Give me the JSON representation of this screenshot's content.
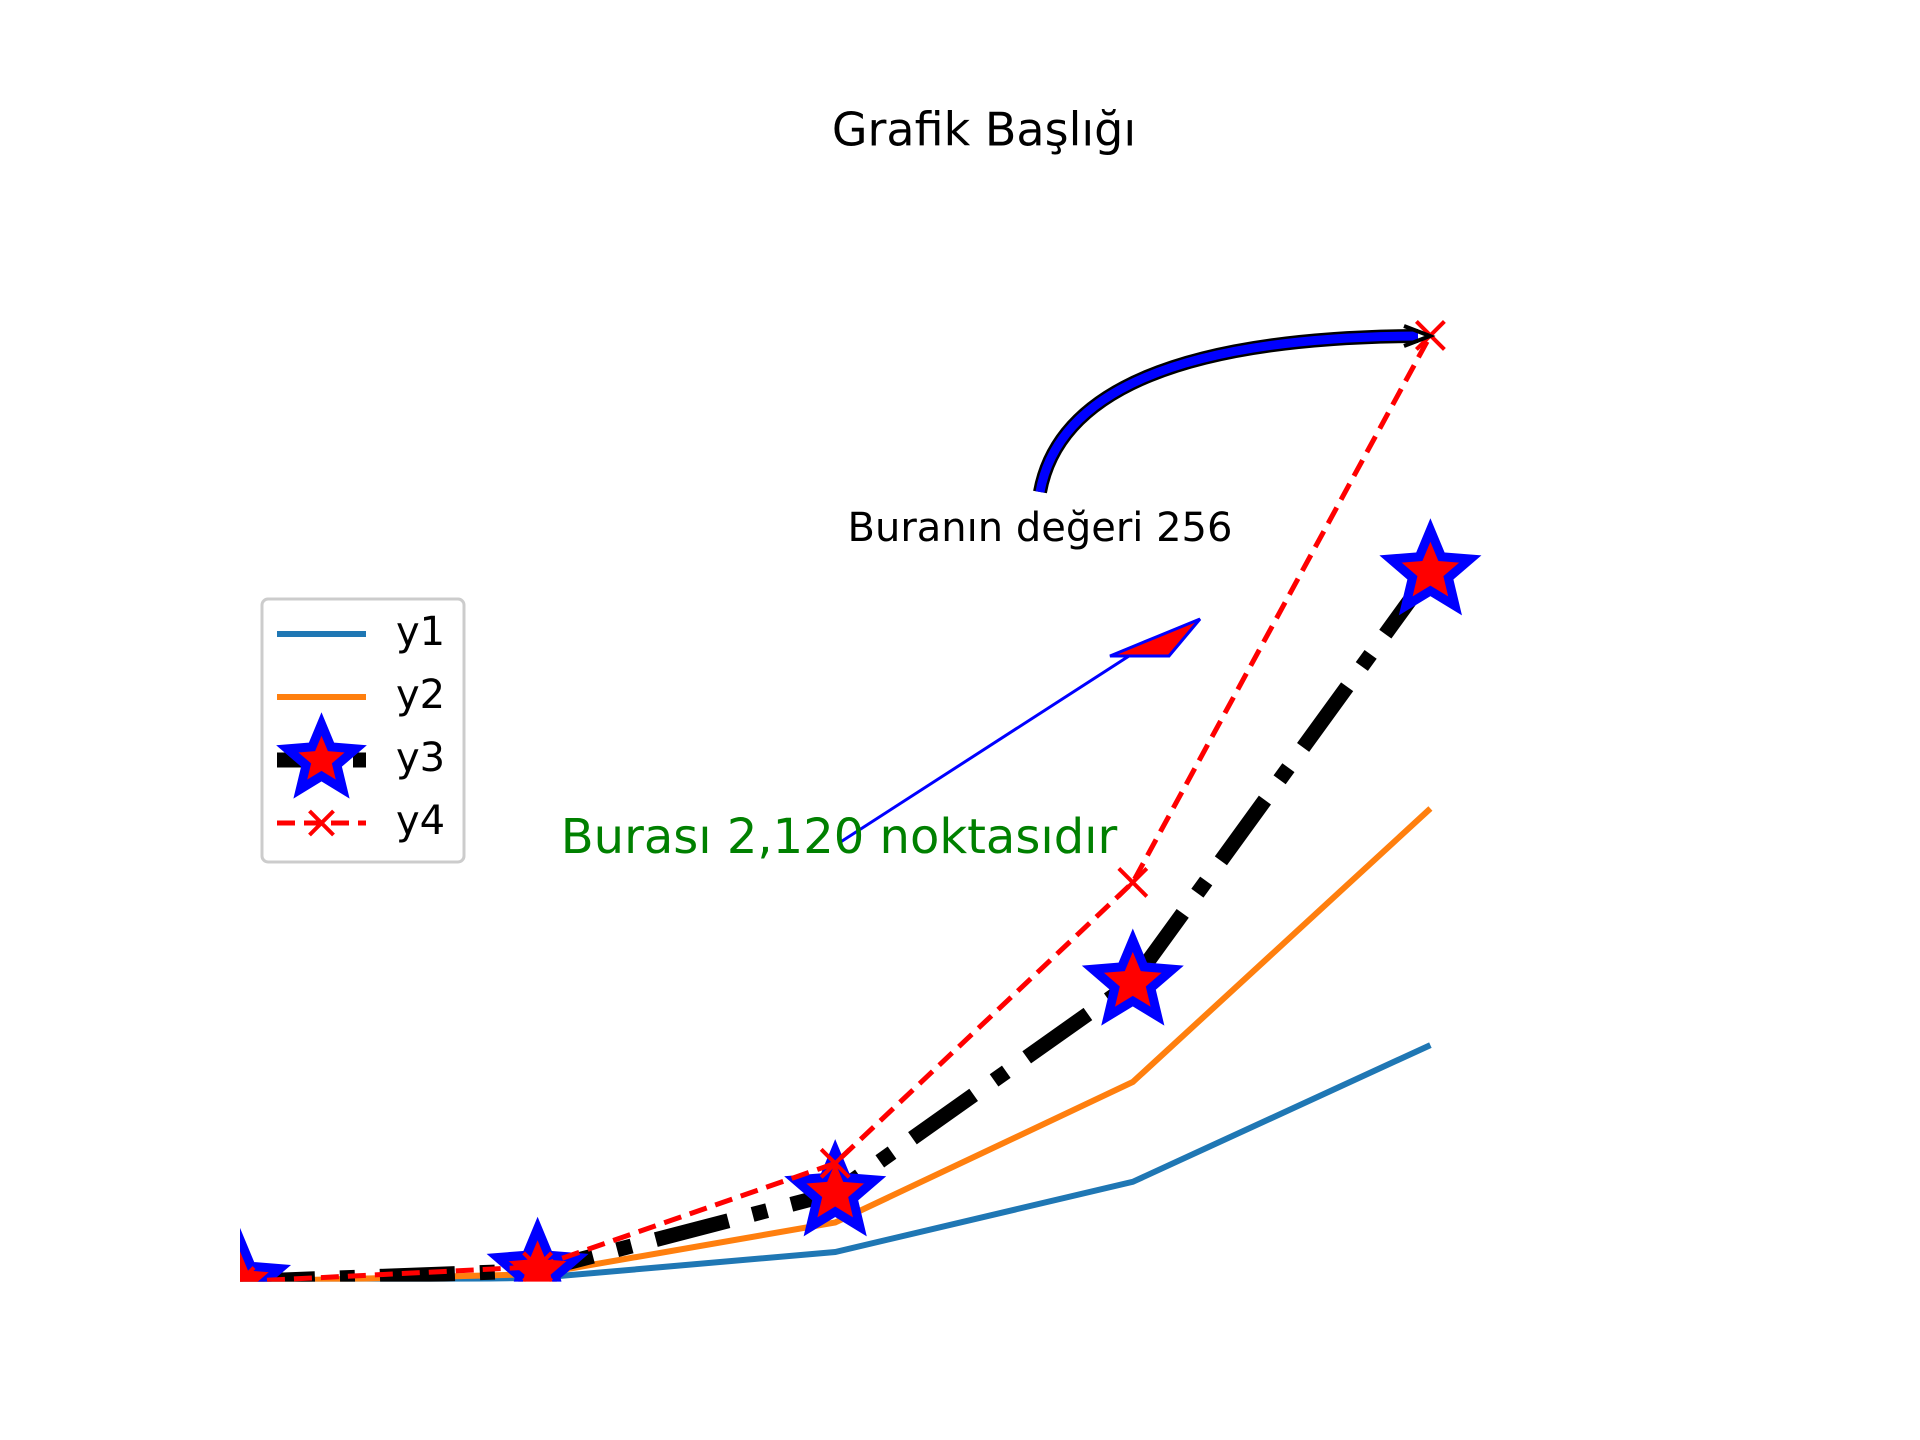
{
  "chart_data": {
    "type": "line",
    "title": "Grafik Başlığı",
    "x": [
      0,
      1,
      2,
      3,
      4
    ],
    "series": [
      {
        "name": "y1",
        "color": "#1f77b4",
        "values": [
          0,
          1,
          8,
          27,
          64
        ]
      },
      {
        "name": "y2",
        "color": "#ff7f0e",
        "values": [
          0,
          2,
          16,
          54,
          128
        ]
      },
      {
        "name": "y3",
        "color": "#000000",
        "values": [
          0,
          3,
          24,
          81,
          192
        ]
      },
      {
        "name": "y4",
        "color": "#ff0000",
        "values": [
          0,
          4,
          32,
          108,
          256
        ]
      }
    ],
    "xlim": [
      0,
      5
    ],
    "ylim": [
      0,
      300
    ],
    "annotations": [
      {
        "text": "Buranın değeri 256",
        "color": "#000000"
      },
      {
        "text": "Burası 2,120 noktasıdır",
        "color": "#008000"
      }
    ],
    "legend": "center left"
  }
}
